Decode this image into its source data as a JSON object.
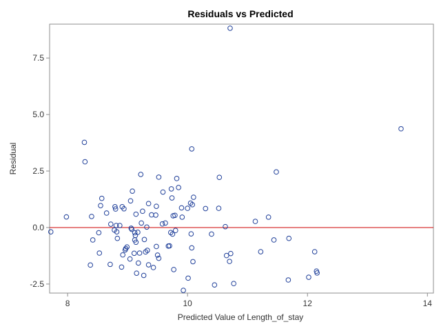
{
  "chart_data": {
    "type": "scatter",
    "title": "Residuals vs Predicted",
    "xlabel": "Predicted Value of Length_of_stay",
    "ylabel": "Residual",
    "xlim": [
      7.7,
      14.1
    ],
    "ylim": [
      -2.9,
      9.0
    ],
    "xticks": [
      8,
      10,
      12,
      14
    ],
    "xtick_labels": [
      "8",
      "10",
      "12",
      "14"
    ],
    "yticks": [
      -2.5,
      0.0,
      2.5,
      5.0,
      7.5
    ],
    "ytick_labels": [
      "-2.5",
      "0.0",
      "2.5",
      "5.0",
      "7.5"
    ],
    "grid": false,
    "legend": "none",
    "reference_line": {
      "y": 0.0,
      "color": "#cc0000"
    },
    "marker_color": "#1f3f99",
    "points": [
      [
        7.72,
        -0.19
      ],
      [
        7.98,
        0.47
      ],
      [
        8.28,
        3.77
      ],
      [
        8.29,
        2.91
      ],
      [
        8.38,
        -1.66
      ],
      [
        8.4,
        0.49
      ],
      [
        8.42,
        -0.55
      ],
      [
        8.52,
        -0.23
      ],
      [
        8.53,
        -1.13
      ],
      [
        8.55,
        0.97
      ],
      [
        8.57,
        1.29
      ],
      [
        8.65,
        0.64
      ],
      [
        8.71,
        -1.63
      ],
      [
        8.72,
        0.15
      ],
      [
        8.78,
        -0.11
      ],
      [
        8.79,
        0.92
      ],
      [
        8.8,
        0.82
      ],
      [
        8.81,
        0.09
      ],
      [
        8.82,
        -0.19
      ],
      [
        8.83,
        -0.48
      ],
      [
        8.87,
        0.09
      ],
      [
        8.9,
        -1.75
      ],
      [
        8.91,
        0.92
      ],
      [
        8.92,
        -1.21
      ],
      [
        8.94,
        0.83
      ],
      [
        8.96,
        -0.99
      ],
      [
        8.97,
        -0.93
      ],
      [
        8.99,
        -0.86
      ],
      [
        9.04,
        -1.39
      ],
      [
        9.05,
        1.18
      ],
      [
        9.06,
        -0.03
      ],
      [
        9.07,
        -0.08
      ],
      [
        9.08,
        1.61
      ],
      [
        9.11,
        -1.14
      ],
      [
        9.12,
        -0.23
      ],
      [
        9.12,
        -0.55
      ],
      [
        9.13,
        -0.35
      ],
      [
        9.14,
        0.59
      ],
      [
        9.14,
        -0.65
      ],
      [
        9.15,
        -2.02
      ],
      [
        9.17,
        -0.21
      ],
      [
        9.18,
        -1.57
      ],
      [
        9.2,
        -1.13
      ],
      [
        9.22,
        2.35
      ],
      [
        9.23,
        0.2
      ],
      [
        9.25,
        0.72
      ],
      [
        9.27,
        -2.12
      ],
      [
        9.28,
        -0.53
      ],
      [
        9.3,
        -1.08
      ],
      [
        9.32,
        0.02
      ],
      [
        9.33,
        -1.01
      ],
      [
        9.35,
        1.06
      ],
      [
        9.35,
        -1.65
      ],
      [
        9.4,
        0.56
      ],
      [
        9.43,
        -1.77
      ],
      [
        9.47,
        0.55
      ],
      [
        9.48,
        -0.84
      ],
      [
        9.48,
        0.94
      ],
      [
        9.5,
        -1.22
      ],
      [
        9.52,
        -1.36
      ],
      [
        9.52,
        2.23
      ],
      [
        9.58,
        0.16
      ],
      [
        9.59,
        1.57
      ],
      [
        9.63,
        0.2
      ],
      [
        9.68,
        -0.82
      ],
      [
        9.7,
        -0.81
      ],
      [
        9.72,
        -0.22
      ],
      [
        9.73,
        1.71
      ],
      [
        9.74,
        1.31
      ],
      [
        9.75,
        -0.29
      ],
      [
        9.76,
        0.52
      ],
      [
        9.77,
        -1.86
      ],
      [
        9.79,
        0.54
      ],
      [
        9.8,
        -0.13
      ],
      [
        9.82,
        2.17
      ],
      [
        9.85,
        1.77
      ],
      [
        9.9,
        0.87
      ],
      [
        9.91,
        0.46
      ],
      [
        9.93,
        -2.78
      ],
      [
        10.0,
        0.85
      ],
      [
        10.01,
        -2.24
      ],
      [
        10.05,
        1.08
      ],
      [
        10.06,
        -0.28
      ],
      [
        10.07,
        3.48
      ],
      [
        10.07,
        -0.9
      ],
      [
        10.08,
        1.01
      ],
      [
        10.09,
        -1.51
      ],
      [
        10.1,
        1.34
      ],
      [
        10.3,
        0.84
      ],
      [
        10.4,
        -0.29
      ],
      [
        10.45,
        -2.54
      ],
      [
        10.52,
        0.85
      ],
      [
        10.53,
        2.22
      ],
      [
        10.63,
        0.04
      ],
      [
        10.65,
        -1.24
      ],
      [
        10.7,
        -1.5
      ],
      [
        10.71,
        8.82
      ],
      [
        10.72,
        -1.15
      ],
      [
        10.77,
        -2.48
      ],
      [
        11.13,
        0.27
      ],
      [
        11.22,
        -1.07
      ],
      [
        11.35,
        0.46
      ],
      [
        11.44,
        -0.55
      ],
      [
        11.48,
        2.46
      ],
      [
        11.68,
        -2.32
      ],
      [
        11.69,
        -0.48
      ],
      [
        12.02,
        -2.2
      ],
      [
        12.12,
        -1.07
      ],
      [
        12.15,
        -1.93
      ],
      [
        12.16,
        -2.01
      ],
      [
        13.56,
        4.37
      ]
    ]
  }
}
